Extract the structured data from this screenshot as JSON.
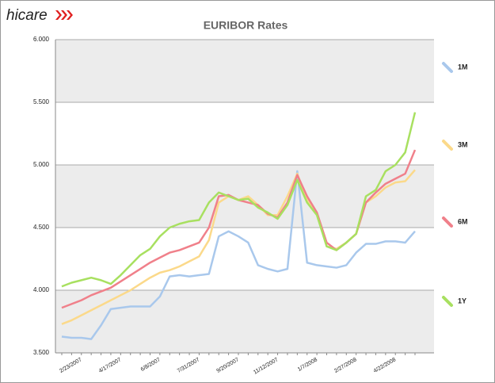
{
  "logo": "hicare",
  "chart_data": {
    "type": "line",
    "title": "EURIBOR Rates",
    "categories": [
      null,
      null,
      "2/23/2007",
      null,
      null,
      null,
      "4/17/2007",
      null,
      null,
      null,
      "6/8/2007",
      null,
      null,
      null,
      "7/31/2007",
      null,
      null,
      null,
      "9/20/2007",
      null,
      null,
      null,
      "11/12/2007",
      null,
      null,
      null,
      "1/7/2008",
      null,
      null,
      null,
      "2/27/2008",
      null,
      null,
      null,
      "4/22/2008",
      null,
      null
    ],
    "series": [
      {
        "name": "1M",
        "color": "#a9c8ec",
        "values": [
          3.63,
          3.62,
          3.62,
          3.61,
          3.72,
          3.85,
          3.86,
          3.87,
          3.87,
          3.87,
          3.95,
          4.11,
          4.12,
          4.11,
          4.12,
          4.13,
          4.43,
          4.47,
          4.43,
          4.38,
          4.2,
          4.17,
          4.15,
          4.17,
          4.95,
          4.22,
          4.2,
          4.19,
          4.18,
          4.2,
          4.3,
          4.37,
          4.37,
          4.39,
          4.39,
          4.38,
          4.47
        ]
      },
      {
        "name": "3M",
        "color": "#fbd98a",
        "values": [
          3.73,
          3.76,
          3.8,
          3.84,
          3.88,
          3.92,
          3.96,
          4.0,
          4.05,
          4.1,
          4.14,
          4.16,
          4.19,
          4.23,
          4.27,
          4.4,
          4.7,
          4.75,
          4.72,
          4.75,
          4.68,
          4.6,
          4.6,
          4.75,
          4.93,
          4.72,
          4.62,
          4.35,
          4.33,
          4.38,
          4.45,
          4.7,
          4.75,
          4.82,
          4.86,
          4.87,
          4.96
        ]
      },
      {
        "name": "6M",
        "color": "#f0808a",
        "values": [
          3.86,
          3.89,
          3.92,
          3.96,
          3.99,
          4.02,
          4.07,
          4.12,
          4.17,
          4.22,
          4.26,
          4.3,
          4.32,
          4.35,
          4.38,
          4.5,
          4.75,
          4.76,
          4.72,
          4.7,
          4.68,
          4.61,
          4.58,
          4.7,
          4.92,
          4.75,
          4.62,
          4.38,
          4.32,
          4.38,
          4.45,
          4.7,
          4.78,
          4.85,
          4.89,
          4.93,
          5.12
        ]
      },
      {
        "name": "1Y",
        "color": "#a8e060",
        "values": [
          4.03,
          4.06,
          4.08,
          4.1,
          4.08,
          4.05,
          4.12,
          4.2,
          4.28,
          4.33,
          4.43,
          4.5,
          4.53,
          4.55,
          4.56,
          4.7,
          4.78,
          4.75,
          4.72,
          4.73,
          4.66,
          4.62,
          4.57,
          4.68,
          4.88,
          4.7,
          4.6,
          4.35,
          4.32,
          4.38,
          4.45,
          4.75,
          4.8,
          4.95,
          5.0,
          5.1,
          5.42
        ]
      }
    ],
    "ylim": [
      3.5,
      6
    ],
    "yticks": [
      {
        "value": 3.5,
        "label": "3.500"
      },
      {
        "value": 4,
        "label": "4.000"
      },
      {
        "value": 4.5,
        "label": "4.500"
      },
      {
        "value": 5,
        "label": "5.000"
      },
      {
        "value": 5.5,
        "label": "5.500"
      },
      {
        "value": 6,
        "label": "6.000"
      }
    ],
    "grid": true,
    "legend": "right"
  }
}
